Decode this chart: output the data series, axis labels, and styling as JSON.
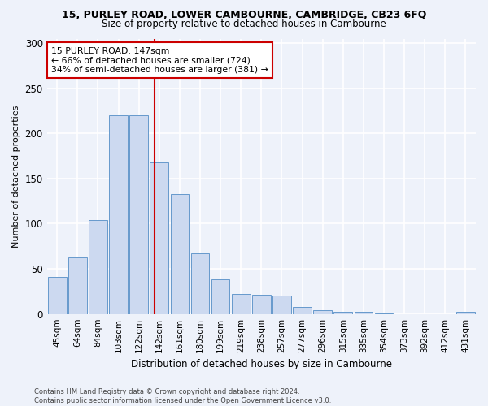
{
  "title": "15, PURLEY ROAD, LOWER CAMBOURNE, CAMBRIDGE, CB23 6FQ",
  "subtitle": "Size of property relative to detached houses in Cambourne",
  "xlabel": "Distribution of detached houses by size in Cambourne",
  "ylabel": "Number of detached properties",
  "categories": [
    "45sqm",
    "64sqm",
    "84sqm",
    "103sqm",
    "122sqm",
    "142sqm",
    "161sqm",
    "180sqm",
    "199sqm",
    "219sqm",
    "238sqm",
    "257sqm",
    "277sqm",
    "296sqm",
    "315sqm",
    "335sqm",
    "354sqm",
    "373sqm",
    "392sqm",
    "412sqm",
    "431sqm"
  ],
  "values": [
    41,
    63,
    104,
    220,
    220,
    168,
    133,
    67,
    38,
    22,
    21,
    20,
    8,
    4,
    2,
    2,
    1,
    0,
    0,
    0,
    2
  ],
  "bar_color": "#ccd9f0",
  "bar_edge_color": "#6699cc",
  "annotation_text_line1": "15 PURLEY ROAD: 147sqm",
  "annotation_text_line2": "← 66% of detached houses are smaller (724)",
  "annotation_text_line3": "34% of semi-detached houses are larger (381) →",
  "annotation_box_color": "#ffffff",
  "annotation_box_edge_color": "#cc0000",
  "annotation_line_color": "#cc0000",
  "ylim": [
    0,
    305
  ],
  "yticks": [
    0,
    50,
    100,
    150,
    200,
    250,
    300
  ],
  "background_color": "#eef2fa",
  "grid_color": "#ffffff",
  "footer_line1": "Contains HM Land Registry data © Crown copyright and database right 2024.",
  "footer_line2": "Contains public sector information licensed under the Open Government Licence v3.0."
}
